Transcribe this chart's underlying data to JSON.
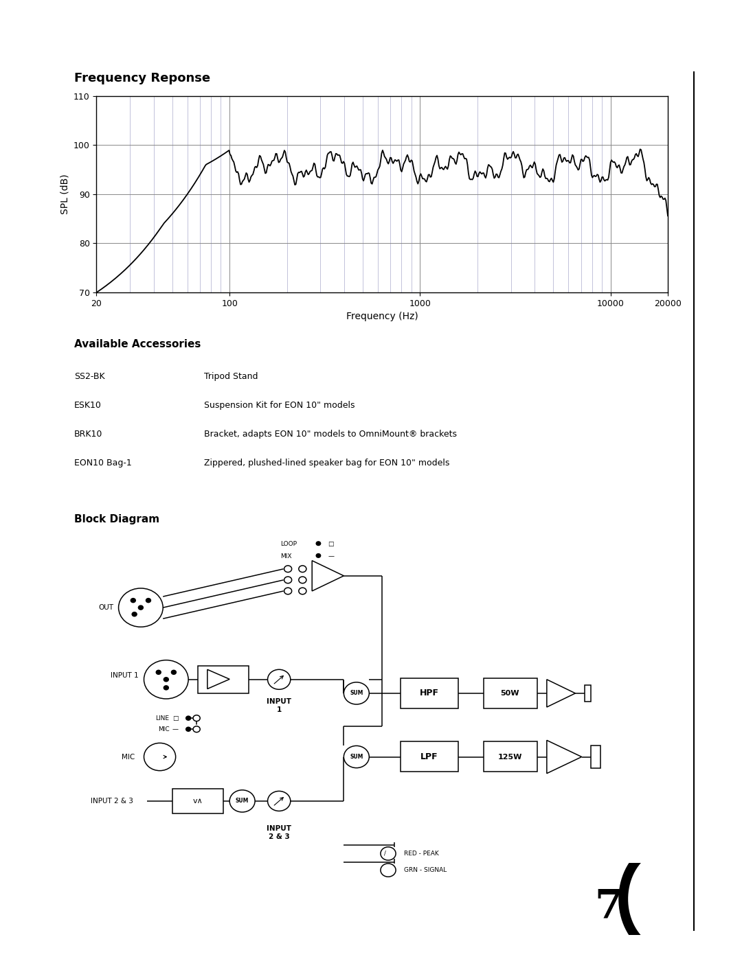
{
  "page_title": "Frequency Reponse",
  "freq_xlabel": "Frequency (Hz)",
  "freq_ylabel": "SPL (dB)",
  "ylim": [
    70,
    110
  ],
  "yticks": [
    70,
    80,
    90,
    100,
    110
  ],
  "xtick_vals": [
    20,
    100,
    1000,
    10000,
    20000
  ],
  "xtick_labels": [
    "20",
    "100",
    "1000",
    "10000",
    "20000"
  ],
  "grid_color_major": "#888888",
  "grid_color_minor": "#aaaacc",
  "curve_color": "#000000",
  "accessories_title": "Available Accessories",
  "accessories": [
    [
      "SS2-BK",
      "Tripod Stand"
    ],
    [
      "ESK10",
      "Suspension Kit for EON 10\" models"
    ],
    [
      "BRK10",
      "Bracket, adapts EON 10\" models to OmniMount® brackets"
    ],
    [
      "EON10 Bag-1",
      "Zippered, plushed-lined speaker bag for EON 10\" models"
    ]
  ],
  "block_title": "Block Diagram",
  "bg_color": "#ffffff",
  "text_color": "#000000",
  "page_number": "7"
}
